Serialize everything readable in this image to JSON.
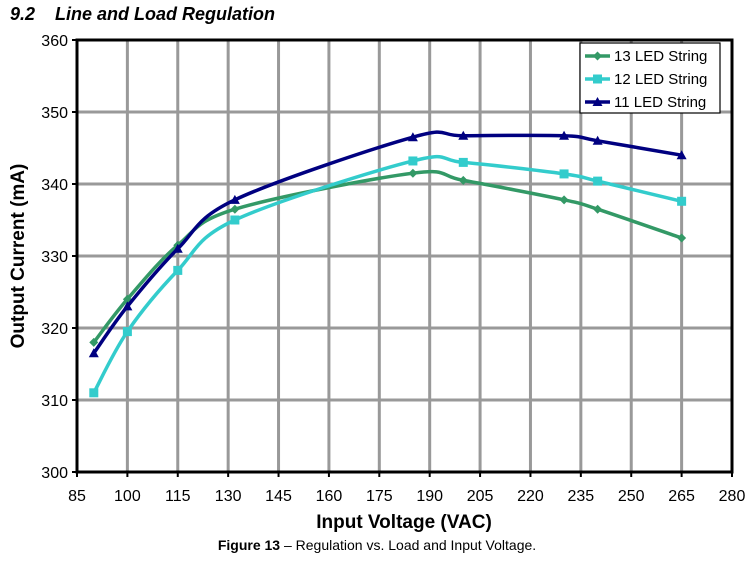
{
  "section": {
    "number": "9.2",
    "title": "Line and Load Regulation"
  },
  "caption": {
    "label": "Figure 13",
    "text": " – Regulation vs. Load and Input Voltage."
  },
  "chart_data": {
    "type": "line",
    "title": "",
    "xlabel": "Input Voltage (VAC)",
    "ylabel": "Output Current (mA)",
    "xlim": [
      85,
      280
    ],
    "ylim": [
      300,
      360
    ],
    "xticks": [
      85,
      100,
      115,
      130,
      145,
      160,
      175,
      190,
      205,
      220,
      235,
      250,
      265,
      280
    ],
    "yticks": [
      300,
      310,
      320,
      330,
      340,
      350,
      360
    ],
    "grid": true,
    "smooth": true,
    "legend_position": "top-right",
    "series": [
      {
        "name": "13 LED String",
        "color": "#339966",
        "marker": "diamond",
        "x": [
          90,
          100,
          115,
          132,
          185,
          200,
          230,
          240,
          265
        ],
        "y": [
          318.0,
          324.0,
          331.5,
          336.5,
          341.5,
          340.5,
          337.8,
          336.5,
          332.5
        ]
      },
      {
        "name": "12 LED String",
        "color": "#33CCCC",
        "marker": "square",
        "x": [
          90,
          100,
          115,
          132,
          185,
          200,
          230,
          240,
          265
        ],
        "y": [
          311.0,
          319.5,
          328.0,
          335.0,
          343.2,
          343.0,
          341.4,
          340.4,
          337.6
        ]
      },
      {
        "name": "11 LED String",
        "color": "#000080",
        "marker": "triangle",
        "x": [
          90,
          100,
          115,
          132,
          185,
          200,
          230,
          240,
          265
        ],
        "y": [
          316.5,
          323.0,
          331.0,
          337.8,
          346.5,
          346.7,
          346.7,
          346.0,
          344.0
        ]
      }
    ]
  }
}
